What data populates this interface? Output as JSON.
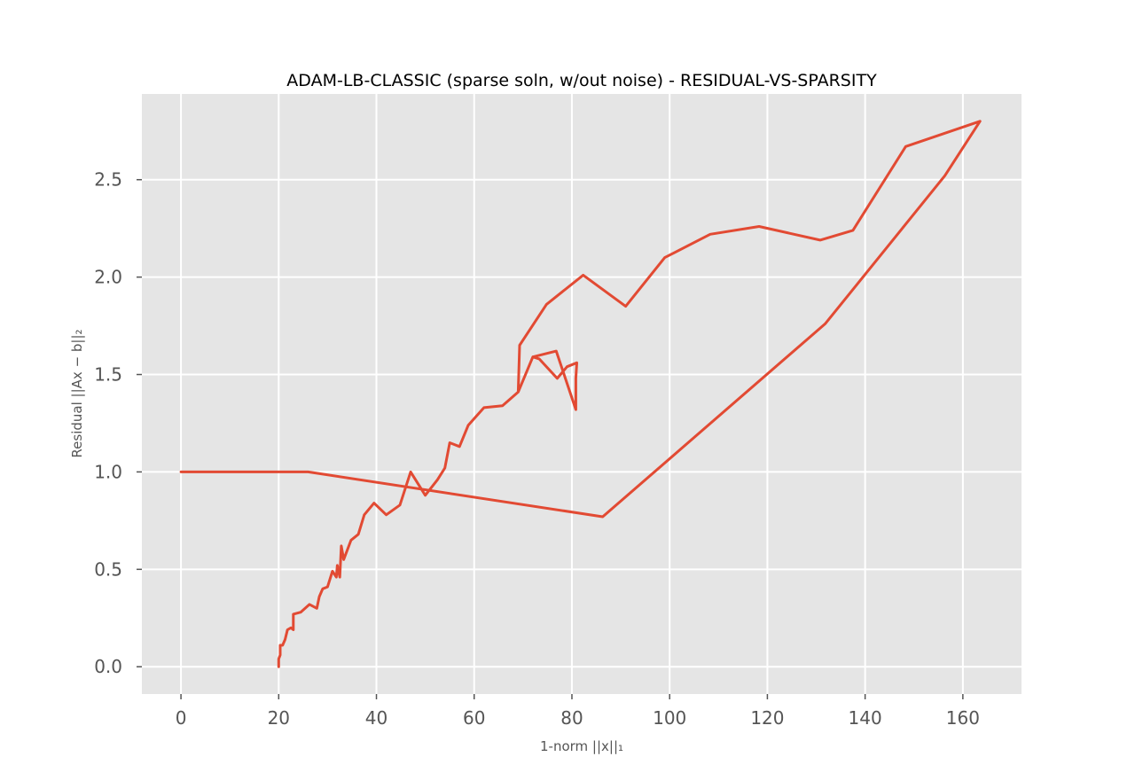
{
  "chart_data": {
    "type": "line",
    "title": "ADAM-LB-CLASSIC (sparse soln, w/out noise) - RESIDUAL-VS-SPARSITY",
    "xlabel": "1-norm ||x||₁",
    "ylabel": "Residual ||Ax − b||₂",
    "xlim": [
      -8,
      172
    ],
    "ylim": [
      -0.14,
      2.94
    ],
    "xticks": [
      0,
      20,
      40,
      60,
      80,
      100,
      120,
      140,
      160
    ],
    "yticks": [
      0.0,
      0.5,
      1.0,
      1.5,
      2.0,
      2.5
    ],
    "xtick_labels": [
      "0",
      "20",
      "40",
      "60",
      "80",
      "100",
      "120",
      "140",
      "160"
    ],
    "ytick_labels": [
      "0.0",
      "0.5",
      "1.0",
      "1.5",
      "2.0",
      "2.5"
    ],
    "grid": true,
    "legend": "none",
    "line_color": "#E24A33",
    "background": "#E5E5E5",
    "series": [
      {
        "x": [
          0,
          26,
          86.3,
          131.8,
          156.3,
          163.5,
          148.3,
          137.5,
          130.8,
          118.3,
          108.3,
          99.0,
          91.0,
          82.3,
          74.8,
          69.3,
          69.0,
          72.0,
          73.3,
          77.0,
          79.0,
          81.0,
          80.8,
          80.8,
          76.8,
          72.0,
          69.0,
          65.8,
          62.0,
          58.8,
          57.0,
          55.0,
          54.0,
          52.5,
          50.0,
          47.0,
          44.8,
          42.0,
          39.5,
          37.5,
          36.3,
          34.8,
          33.3,
          32.8,
          32.5,
          32.0,
          31.8,
          31.0,
          30.0,
          29.0,
          28.3,
          27.8,
          26.3,
          24.5,
          23.0,
          23.0,
          22.5,
          21.8,
          21.3,
          20.8,
          20.3,
          20.3,
          20.0,
          20.0
        ],
        "y": [
          1.0,
          1.0,
          0.77,
          1.76,
          2.52,
          2.8,
          2.67,
          2.24,
          2.19,
          2.26,
          2.22,
          2.1,
          1.85,
          2.01,
          1.86,
          1.65,
          1.41,
          1.59,
          1.58,
          1.48,
          1.54,
          1.56,
          1.48,
          1.32,
          1.62,
          1.59,
          1.41,
          1.34,
          1.33,
          1.24,
          1.13,
          1.15,
          1.02,
          0.96,
          0.88,
          1.0,
          0.83,
          0.78,
          0.84,
          0.78,
          0.68,
          0.65,
          0.55,
          0.62,
          0.46,
          0.52,
          0.46,
          0.49,
          0.41,
          0.4,
          0.36,
          0.3,
          0.32,
          0.28,
          0.27,
          0.19,
          0.2,
          0.19,
          0.14,
          0.11,
          0.11,
          0.06,
          0.04,
          0.0
        ]
      }
    ]
  }
}
